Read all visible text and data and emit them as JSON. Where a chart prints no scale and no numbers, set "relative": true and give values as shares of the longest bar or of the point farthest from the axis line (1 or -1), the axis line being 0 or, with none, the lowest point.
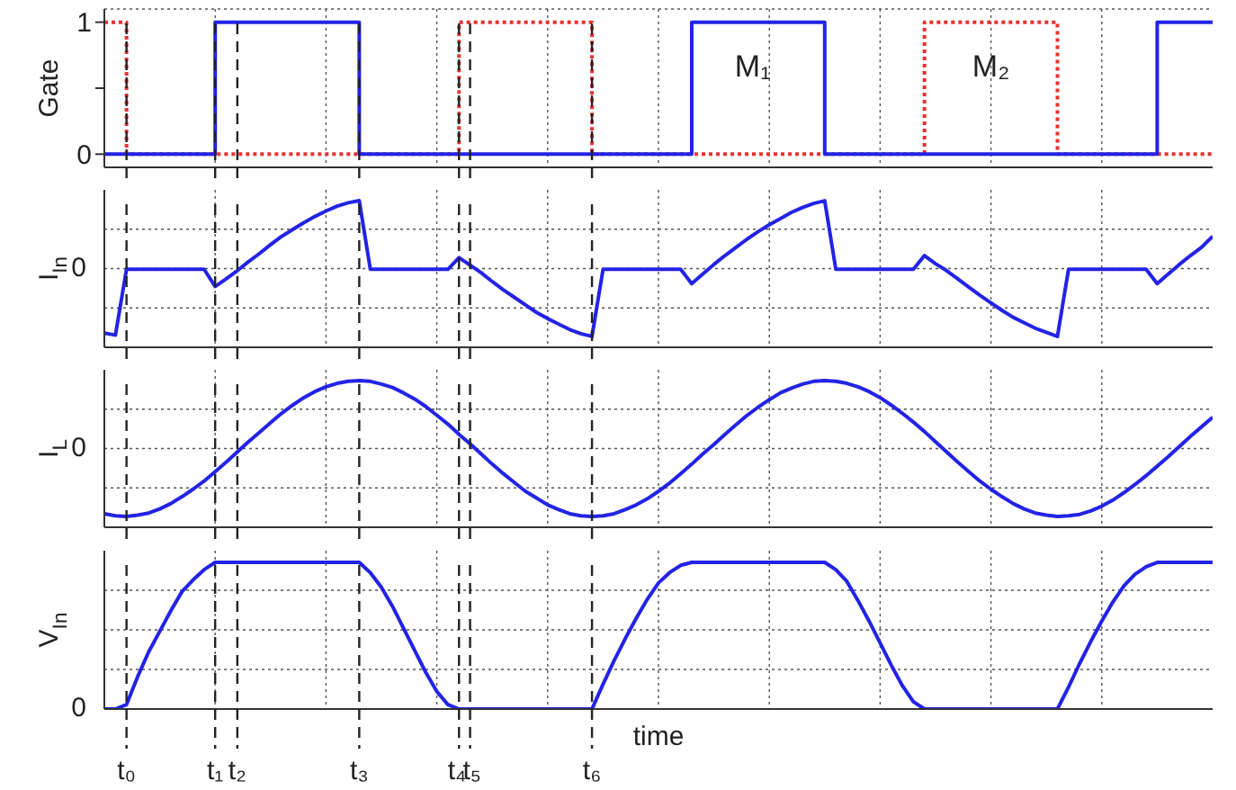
{
  "chart_data": [
    {
      "type": "step",
      "ylabel": "Gate",
      "categories": [
        null,
        null,
        null,
        null,
        null,
        null,
        null,
        null,
        null,
        null,
        null,
        null,
        null,
        null,
        null,
        null,
        null,
        null,
        null,
        null,
        null,
        null,
        null,
        null,
        null,
        null,
        null,
        null,
        null,
        null,
        null,
        null,
        null,
        null,
        null,
        null,
        null,
        null,
        null,
        null,
        null,
        null,
        null,
        null,
        null,
        null,
        null,
        null,
        null,
        null,
        null,
        null,
        null,
        null,
        null,
        null,
        null,
        null,
        null,
        null,
        null,
        null,
        null,
        null,
        null,
        null,
        null,
        null,
        null,
        null,
        null,
        null,
        null,
        null,
        null,
        null,
        null,
        null,
        null,
        null,
        null,
        null,
        null,
        null,
        null,
        null,
        null,
        null,
        null,
        null,
        null,
        null,
        null,
        null,
        null,
        null,
        null,
        null,
        null,
        null,
        null
      ],
      "ylim": [
        -0.1,
        1.1
      ],
      "yticks": [
        0,
        {
          "value": 0.5,
          "label": null
        },
        1
      ],
      "grid": true,
      "tick_labels": "y",
      "marker": "none",
      "series": [
        {
          "color": "#e83030",
          "line_style": "dotted",
          "values": [
            1,
            1,
            0,
            0,
            0,
            0,
            0,
            0,
            0,
            0,
            0,
            0,
            0,
            0,
            0,
            0,
            0,
            0,
            0,
            0,
            0,
            0,
            0,
            0,
            0,
            0,
            0,
            0,
            0,
            0,
            0,
            0,
            1,
            1,
            1,
            1,
            1,
            1,
            1,
            1,
            1,
            1,
            1,
            1,
            0,
            0,
            0,
            0,
            0,
            0,
            0,
            0,
            0,
            0,
            0,
            0,
            0,
            0,
            0,
            0,
            0,
            0,
            0,
            0,
            0,
            0,
            0,
            0,
            0,
            0,
            0,
            0,
            0,
            0,
            1,
            1,
            1,
            1,
            1,
            1,
            1,
            1,
            1,
            1,
            1,
            1,
            0,
            0,
            0,
            0,
            0,
            0,
            0,
            0,
            0,
            0,
            0,
            0,
            0,
            0,
            0
          ]
        },
        {
          "color": "#2323e6",
          "line_style": "solid",
          "values": [
            0,
            0,
            0,
            0,
            0,
            0,
            0,
            0,
            0,
            0,
            1,
            1,
            1,
            1,
            1,
            1,
            1,
            1,
            1,
            1,
            1,
            1,
            1,
            0,
            0,
            0,
            0,
            0,
            0,
            0,
            0,
            0,
            0,
            0,
            0,
            0,
            0,
            0,
            0,
            0,
            0,
            0,
            0,
            0,
            0,
            0,
            0,
            0,
            0,
            0,
            0,
            0,
            0,
            1,
            1,
            1,
            1,
            1,
            1,
            1,
            1,
            1,
            1,
            1,
            1,
            0,
            0,
            0,
            0,
            0,
            0,
            0,
            0,
            0,
            0,
            0,
            0,
            0,
            0,
            0,
            0,
            0,
            0,
            0,
            0,
            0,
            0,
            0,
            0,
            0,
            0,
            0,
            0,
            0,
            0,
            1,
            1,
            1,
            1,
            1,
            1
          ]
        }
      ],
      "annotations": [
        "M₁",
        "M₂"
      ]
    },
    {
      "type": "line",
      "relative": true,
      "ylabel": "I$_{In}$",
      "categories": [
        null,
        null,
        null,
        null,
        null,
        null,
        null,
        null,
        null,
        null,
        null,
        null,
        null,
        null,
        null,
        null,
        null,
        null,
        null,
        null,
        null,
        null,
        null,
        null,
        null,
        null,
        null,
        null,
        null,
        null,
        null,
        null,
        null,
        null,
        null,
        null,
        null,
        null,
        null,
        null,
        null,
        null,
        null,
        null,
        null,
        null,
        null,
        null,
        null,
        null,
        null,
        null,
        null,
        null,
        null,
        null,
        null,
        null,
        null,
        null,
        null,
        null,
        null,
        null,
        null,
        null,
        null,
        null,
        null,
        null,
        null,
        null,
        null,
        null,
        null,
        null,
        null,
        null,
        null,
        null,
        null,
        null,
        null,
        null,
        null,
        null,
        null,
        null,
        null,
        null,
        null,
        null,
        null,
        null,
        null,
        null,
        null,
        null,
        null,
        null,
        null
      ],
      "grid": true,
      "tick_labels": false,
      "marker": "none",
      "series": [
        {
          "color": "#2323e6",
          "values": [
            -0.93,
            -0.96,
            0,
            0,
            0,
            0,
            0,
            0,
            0,
            0,
            -0.25,
            -0.14,
            -0.02,
            0.11,
            0.23,
            0.36,
            0.48,
            0.58,
            0.68,
            0.77,
            0.85,
            0.92,
            0.97,
            1,
            0,
            0,
            0,
            0,
            0,
            0,
            0,
            0,
            0.17,
            0.06,
            -0.05,
            -0.18,
            -0.3,
            -0.41,
            -0.52,
            -0.63,
            -0.72,
            -0.8,
            -0.88,
            -0.94,
            -0.98,
            0,
            0,
            0,
            0,
            0,
            0,
            0,
            0,
            -0.21,
            -0.07,
            0.07,
            0.2,
            0.32,
            0.44,
            0.55,
            0.65,
            0.74,
            0.83,
            0.9,
            0.96,
            1,
            0,
            0,
            0,
            0,
            0,
            0,
            0,
            0,
            0.2,
            0.08,
            -0.02,
            -0.14,
            -0.26,
            -0.38,
            -0.49,
            -0.6,
            -0.7,
            -0.78,
            -0.86,
            -0.92,
            -0.98,
            0,
            0,
            0,
            0,
            0,
            0,
            0,
            0,
            -0.21,
            -0.07,
            0.07,
            0.2,
            0.32,
            0.48
          ]
        }
      ],
      "annotations": [
        "0"
      ]
    },
    {
      "type": "line",
      "relative": true,
      "ylabel": "I$_{L}$",
      "categories": [
        null,
        null,
        null,
        null,
        null,
        null,
        null,
        null,
        null,
        null,
        null,
        null,
        null,
        null,
        null,
        null,
        null,
        null,
        null,
        null,
        null,
        null,
        null,
        null,
        null,
        null,
        null,
        null,
        null,
        null,
        null,
        null,
        null,
        null,
        null,
        null,
        null,
        null,
        null,
        null,
        null,
        null,
        null,
        null,
        null,
        null,
        null,
        null,
        null,
        null,
        null,
        null,
        null,
        null,
        null,
        null,
        null,
        null,
        null,
        null,
        null,
        null,
        null,
        null,
        null,
        null,
        null,
        null,
        null,
        null,
        null,
        null,
        null,
        null,
        null,
        null,
        null,
        null,
        null,
        null,
        null,
        null,
        null,
        null,
        null,
        null,
        null,
        null,
        null,
        null,
        null,
        null,
        null,
        null,
        null,
        null,
        null,
        null,
        null,
        null,
        null
      ],
      "grid": true,
      "tick_labels": false,
      "marker": "none",
      "series": [
        {
          "color": "#2323e6",
          "values": [
            -0.96,
            -0.99,
            -1,
            -0.98,
            -0.95,
            -0.89,
            -0.81,
            -0.71,
            -0.6,
            -0.48,
            -0.34,
            -0.2,
            -0.05,
            0.1,
            0.24,
            0.38,
            0.52,
            0.64,
            0.75,
            0.84,
            0.91,
            0.96,
            0.99,
            1,
            0.99,
            0.95,
            0.9,
            0.82,
            0.73,
            0.62,
            0.49,
            0.36,
            0.21,
            0.07,
            -0.08,
            -0.23,
            -0.37,
            -0.5,
            -0.63,
            -0.73,
            -0.83,
            -0.9,
            -0.96,
            -0.99,
            -1,
            -0.99,
            -0.96,
            -0.9,
            -0.83,
            -0.74,
            -0.63,
            -0.51,
            -0.37,
            -0.23,
            -0.08,
            0.06,
            0.21,
            0.35,
            0.49,
            0.61,
            0.72,
            0.82,
            0.89,
            0.95,
            0.99,
            1,
            0.99,
            0.96,
            0.91,
            0.84,
            0.75,
            0.64,
            0.52,
            0.39,
            0.25,
            0.1,
            -0.05,
            -0.2,
            -0.34,
            -0.48,
            -0.6,
            -0.71,
            -0.81,
            -0.89,
            -0.95,
            -0.98,
            -1,
            -0.99,
            -0.97,
            -0.92,
            -0.85,
            -0.76,
            -0.65,
            -0.53,
            -0.4,
            -0.26,
            -0.12,
            0.03,
            0.18,
            0.32,
            0.46
          ]
        }
      ],
      "annotations": [
        "0"
      ]
    },
    {
      "type": "line",
      "relative": true,
      "ylabel": "V$_{In}$",
      "xlabel": "time",
      "categories": [
        null,
        null,
        "t₀",
        null,
        null,
        null,
        null,
        null,
        null,
        null,
        "t₁",
        null,
        "t₂",
        null,
        null,
        null,
        null,
        null,
        null,
        null,
        null,
        null,
        null,
        "t₃",
        null,
        null,
        null,
        null,
        null,
        null,
        null,
        null,
        "t₄",
        "t₅",
        null,
        null,
        null,
        null,
        null,
        null,
        null,
        null,
        null,
        null,
        "t₆",
        null,
        null,
        null,
        null,
        null,
        null,
        null,
        null,
        null,
        null,
        null,
        null,
        null,
        null,
        null,
        null,
        null,
        null,
        null,
        null,
        null,
        null,
        null,
        null,
        null,
        null,
        null,
        null,
        null,
        null,
        null,
        null,
        null,
        null,
        null,
        null,
        null,
        null,
        null,
        null,
        null,
        null,
        null,
        null,
        null,
        null,
        null,
        null,
        null,
        null,
        null,
        null,
        null,
        null,
        null,
        null
      ],
      "grid": true,
      "marker": "none",
      "series": [
        {
          "color": "#2323e6",
          "values": [
            0,
            0,
            0.03,
            0.22,
            0.39,
            0.53,
            0.67,
            0.8,
            0.88,
            0.95,
            1,
            1,
            1,
            1,
            1,
            1,
            1,
            1,
            1,
            1,
            1,
            1,
            1,
            1,
            0.93,
            0.83,
            0.7,
            0.55,
            0.4,
            0.25,
            0.12,
            0.03,
            0,
            0,
            0,
            0,
            0,
            0,
            0,
            0,
            0,
            0,
            0,
            0,
            0,
            0.17,
            0.33,
            0.48,
            0.62,
            0.75,
            0.86,
            0.93,
            0.98,
            1,
            1,
            1,
            1,
            1,
            1,
            1,
            1,
            1,
            1,
            1,
            1,
            1,
            0.95,
            0.87,
            0.74,
            0.6,
            0.45,
            0.3,
            0.16,
            0.05,
            0,
            0,
            0,
            0,
            0,
            0,
            0,
            0,
            0,
            0,
            0,
            0,
            0,
            0.15,
            0.31,
            0.46,
            0.6,
            0.73,
            0.84,
            0.92,
            0.97,
            1,
            1,
            1,
            1,
            1,
            1
          ]
        }
      ],
      "annotations": [
        "0"
      ]
    }
  ]
}
